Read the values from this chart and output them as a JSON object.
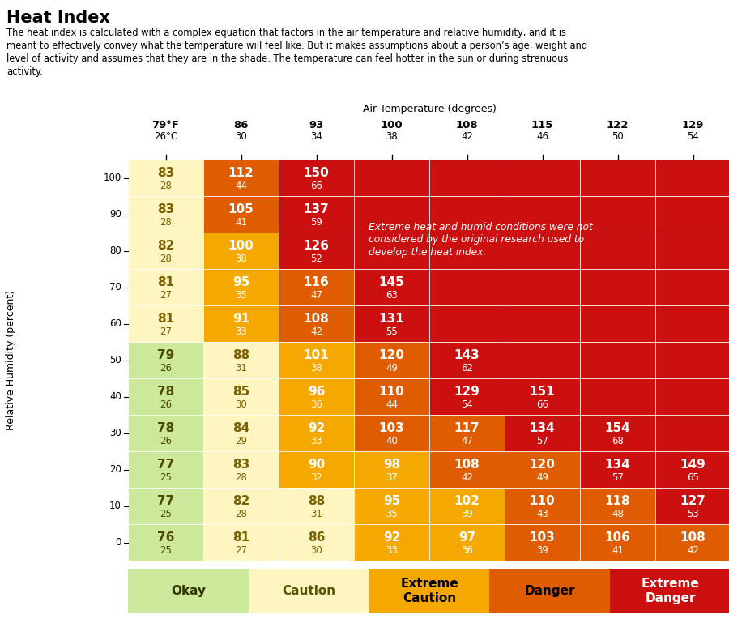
{
  "title": "Heat Index",
  "description_lines": [
    "The heat index is calculated with a complex equation that factors in the air temperature and relative humidity, and it is",
    "meant to effectively convey what the temperature will feel like. But it makes assumptions about a person’s age, weight and",
    "level of activity and assumes that they are in the shade. The temperature can feel hotter in the sun or during strenuous",
    "activity."
  ],
  "xlabel": "Air Temperature (degrees)",
  "ylabel": "Relative Humidity (percent)",
  "temp_f": [
    79,
    86,
    93,
    100,
    108,
    115,
    122,
    129
  ],
  "temp_c": [
    26,
    30,
    34,
    38,
    42,
    46,
    50,
    54
  ],
  "humidity": [
    100,
    90,
    80,
    70,
    60,
    50,
    40,
    30,
    20,
    10,
    0
  ],
  "heat_index_f": [
    [
      83,
      112,
      150,
      null,
      null,
      null,
      null,
      null
    ],
    [
      83,
      105,
      137,
      null,
      null,
      null,
      null,
      null
    ],
    [
      82,
      100,
      126,
      null,
      null,
      null,
      null,
      null
    ],
    [
      81,
      95,
      116,
      145,
      null,
      null,
      null,
      null
    ],
    [
      81,
      91,
      108,
      131,
      null,
      null,
      null,
      null
    ],
    [
      79,
      88,
      101,
      120,
      143,
      null,
      null,
      null
    ],
    [
      78,
      85,
      96,
      110,
      129,
      151,
      null,
      null
    ],
    [
      78,
      84,
      92,
      103,
      117,
      134,
      154,
      null
    ],
    [
      77,
      83,
      90,
      98,
      108,
      120,
      134,
      149
    ],
    [
      77,
      82,
      88,
      95,
      102,
      110,
      118,
      127
    ],
    [
      76,
      81,
      86,
      92,
      97,
      103,
      106,
      108
    ]
  ],
  "heat_index_c": [
    [
      28,
      44,
      66,
      null,
      null,
      null,
      null,
      null
    ],
    [
      28,
      41,
      59,
      null,
      null,
      null,
      null,
      null
    ],
    [
      28,
      38,
      52,
      null,
      null,
      null,
      null,
      null
    ],
    [
      27,
      35,
      47,
      63,
      null,
      null,
      null,
      null
    ],
    [
      27,
      33,
      42,
      55,
      null,
      null,
      null,
      null
    ],
    [
      26,
      31,
      38,
      49,
      62,
      null,
      null,
      null
    ],
    [
      26,
      30,
      36,
      44,
      54,
      66,
      null,
      null
    ],
    [
      26,
      29,
      33,
      40,
      47,
      57,
      68,
      null
    ],
    [
      25,
      28,
      32,
      37,
      42,
      49,
      57,
      65
    ],
    [
      25,
      28,
      31,
      35,
      39,
      43,
      48,
      53
    ],
    [
      25,
      27,
      30,
      33,
      36,
      39,
      41,
      42
    ]
  ],
  "color_okay": "#cce89a",
  "color_caution": "#fef5c0",
  "color_extreme_caution": "#f5a800",
  "color_danger": "#e05c00",
  "color_extreme_danger": "#cc1010",
  "color_extreme_bg": "#cc1010",
  "note_text": "Extreme heat and humid conditions were not\nconsidered by the original research used to\ndevelop the heat index.",
  "legend_labels": [
    "Okay",
    "Caution",
    "Extreme\nCaution",
    "Danger",
    "Extreme\nDanger"
  ],
  "legend_colors": [
    "#cce89a",
    "#fef5c0",
    "#f5a800",
    "#e05c00",
    "#cc1010"
  ],
  "legend_text_colors": [
    "#333300",
    "#555500",
    "#000000",
    "#000000",
    "#ffffff"
  ]
}
